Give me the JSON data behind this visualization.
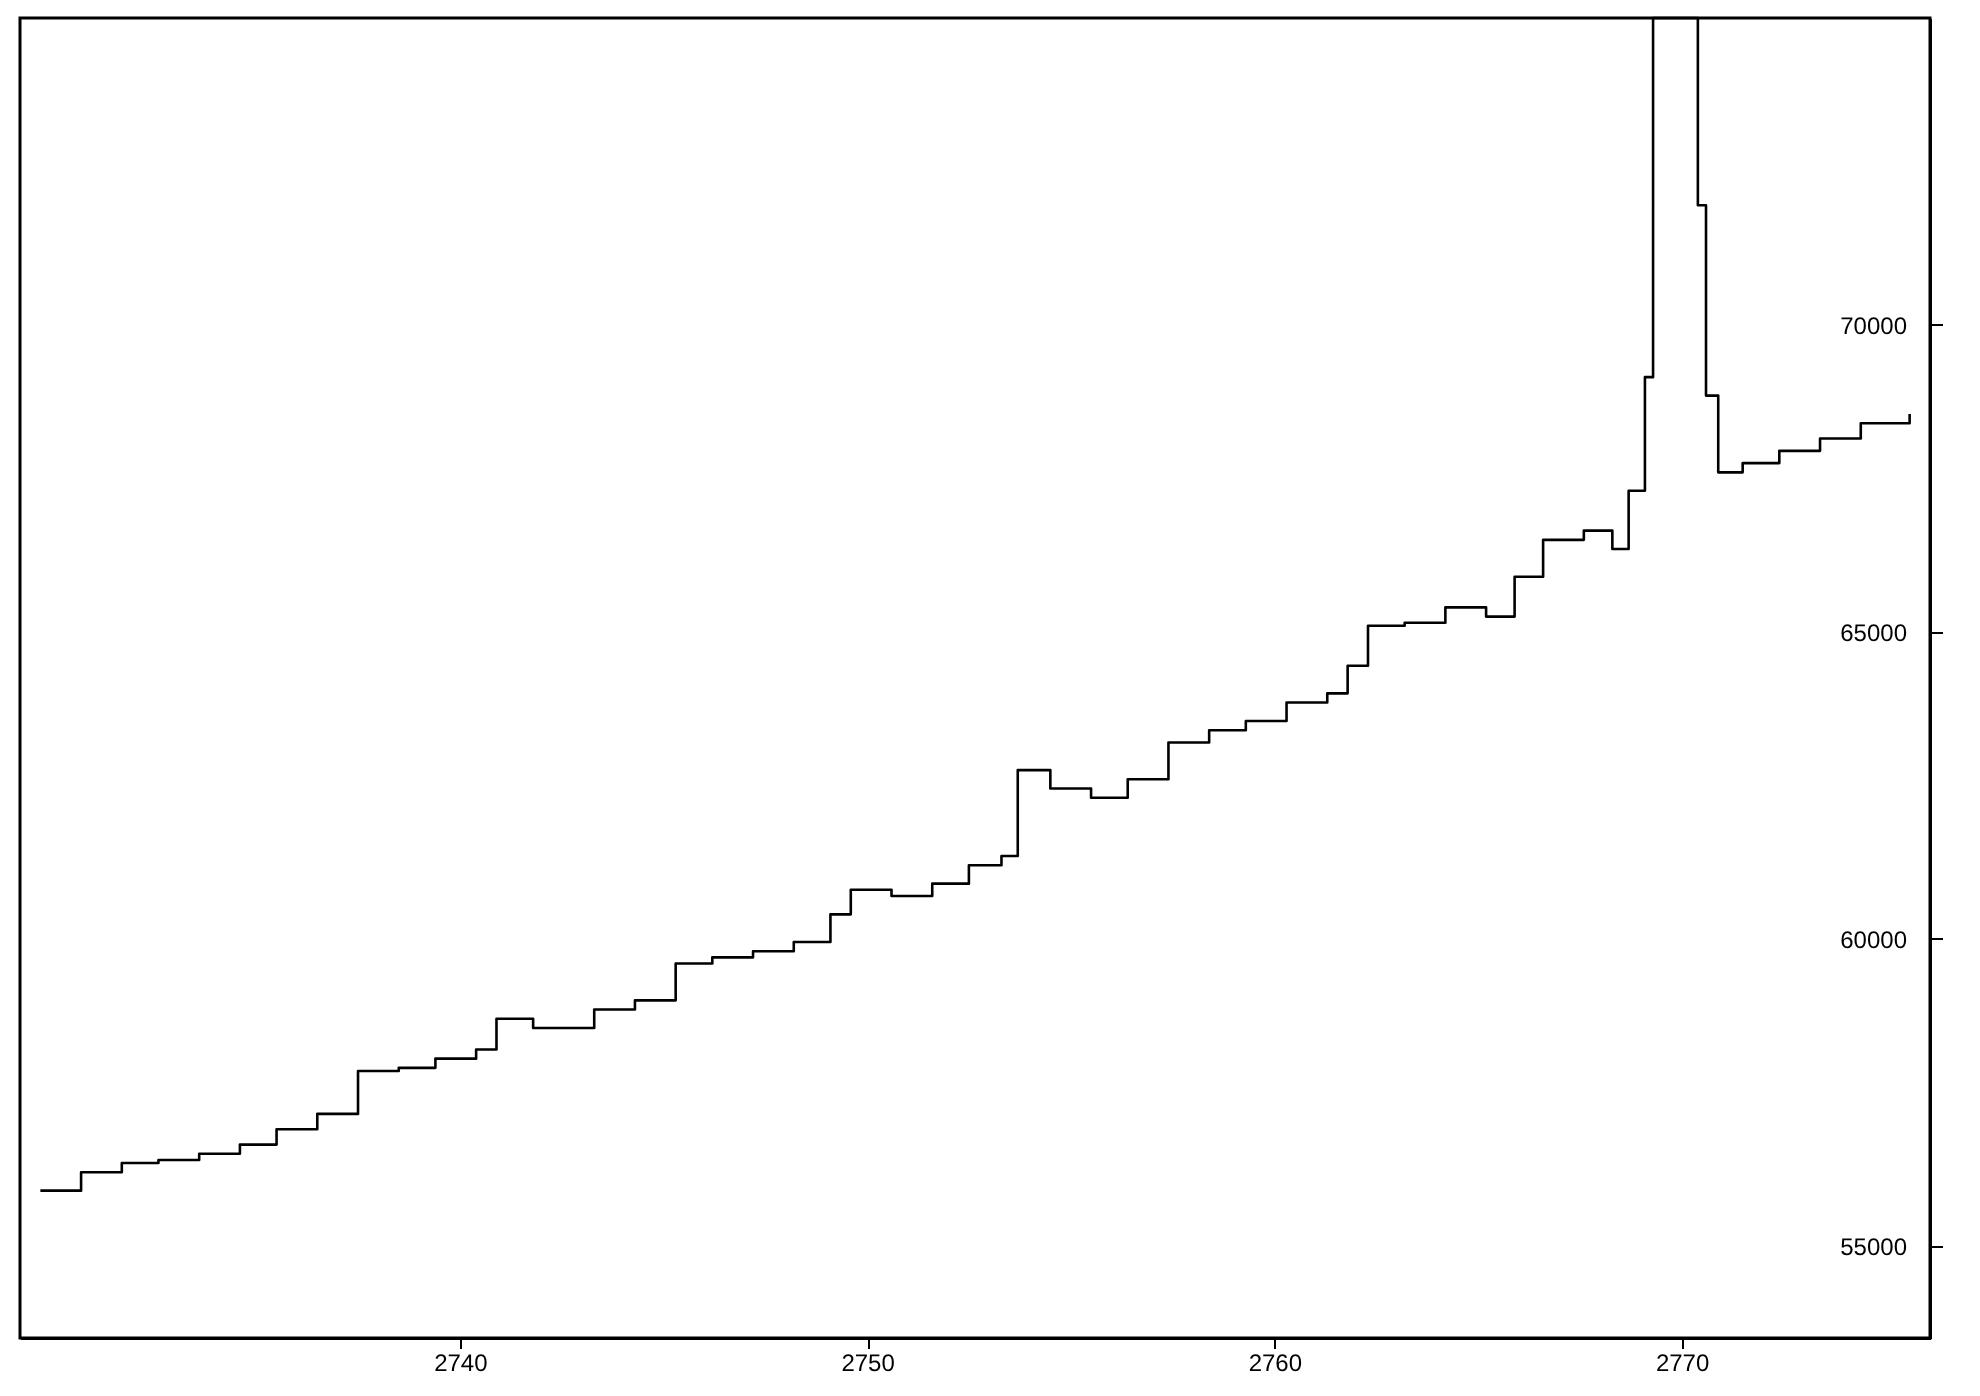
{
  "chart_data": {
    "type": "step",
    "x": [
      2729.7,
      2730.7,
      2731.7,
      2732.6,
      2733.6,
      2734.6,
      2735.5,
      2736.5,
      2737.5,
      2738.5,
      2739.4,
      2740.4,
      2740.9,
      2741.8,
      2743.3,
      2744.3,
      2745.3,
      2746.2,
      2747.2,
      2748.2,
      2749.1,
      2749.6,
      2750.6,
      2751.6,
      2752.5,
      2753.3,
      2753.7,
      2754.5,
      2755.5,
      2756.4,
      2757.4,
      2758.4,
      2759.3,
      2760.3,
      2761.3,
      2761.8,
      2762.3,
      2763.2,
      2764.2,
      2765.2,
      2765.9,
      2766.6,
      2767.6,
      2768.3,
      2768.7,
      2769.1,
      2769.3,
      2770.4,
      2770.6,
      2770.9,
      2771.5,
      2772.4,
      2773.4,
      2774.4,
      2775.6
    ],
    "series": [
      {
        "color": "#000000",
        "values": [
          55900,
          56200,
          56350,
          56400,
          56500,
          56650,
          56900,
          57150,
          57850,
          57900,
          58050,
          58200,
          58700,
          58550,
          58850,
          59000,
          59600,
          59700,
          59800,
          59950,
          60400,
          60800,
          60700,
          60900,
          61200,
          61350,
          62750,
          62450,
          62300,
          62600,
          63200,
          63400,
          63550,
          63850,
          64000,
          64450,
          65100,
          65150,
          65400,
          65250,
          65900,
          66500,
          66650,
          66350,
          67300,
          69150,
          75000,
          71950,
          68850,
          67600,
          67750,
          67950,
          68150,
          68400,
          68550
        ]
      }
    ],
    "xlim": [
      2729.2,
      2776.1
    ],
    "xticks": [
      2740,
      2750,
      2760,
      2770
    ],
    "ylim": [
      53500,
      75000
    ],
    "yticks": [
      55000,
      60000,
      65000,
      70000
    ],
    "grid": false,
    "line_style": "solid"
  }
}
